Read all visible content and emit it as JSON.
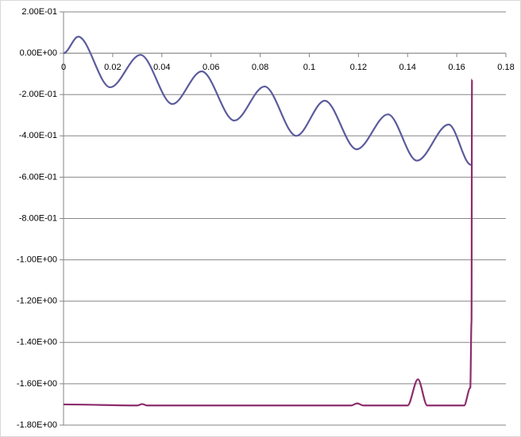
{
  "chart_data": {
    "type": "line",
    "xlim": [
      0,
      0.18
    ],
    "xticks": [
      0,
      0.02,
      0.04,
      0.06,
      0.08,
      0.1,
      0.12,
      0.14,
      0.16,
      0.18
    ],
    "ylim": [
      -1.8,
      0.2
    ],
    "yticks": [
      {
        "value": 0.2,
        "label": "2.00E-01"
      },
      {
        "value": 0,
        "label": "0.00E+00"
      },
      {
        "value": -0.2,
        "label": "-2.00E-01"
      },
      {
        "value": -0.4,
        "label": "-4.00E-01"
      },
      {
        "value": -0.6,
        "label": "-6.00E-01"
      },
      {
        "value": -0.8,
        "label": "-8.00E-01"
      },
      {
        "value": -1.0,
        "label": "-1.00E+00"
      },
      {
        "value": -1.2,
        "label": "-1.20E+00"
      },
      {
        "value": -1.4,
        "label": "-1.40E+00"
      },
      {
        "value": -1.6,
        "label": "-1.60E+00"
      },
      {
        "value": -1.8,
        "label": "-1.80E+00"
      }
    ],
    "grid": true,
    "series": [
      {
        "color": "#5b5b9c",
        "x": [
          0,
          0.006,
          0.019,
          0.0313,
          0.0443,
          0.0562,
          0.0695,
          0.0818,
          0.0947,
          0.1063,
          0.1193,
          0.132,
          0.1438,
          0.1567,
          0.1658
        ],
        "values": [
          0,
          0.08,
          -0.165,
          -0.008,
          -0.246,
          -0.088,
          -0.326,
          -0.161,
          -0.4,
          -0.23,
          -0.465,
          -0.296,
          -0.52,
          -0.345,
          -0.54
        ]
      },
      {
        "color": "#8c2c6c",
        "x": [
          0,
          0.03,
          0.032,
          0.034,
          0.117,
          0.1195,
          0.122,
          0.14,
          0.1442,
          0.148,
          0.163,
          0.1655,
          0.166,
          0.1662
        ],
        "values": [
          -1.7,
          -1.705,
          -1.698,
          -1.705,
          -1.705,
          -1.695,
          -1.705,
          -1.705,
          -1.578,
          -1.705,
          -1.705,
          -1.62,
          -1.3,
          -0.127
        ]
      }
    ]
  }
}
